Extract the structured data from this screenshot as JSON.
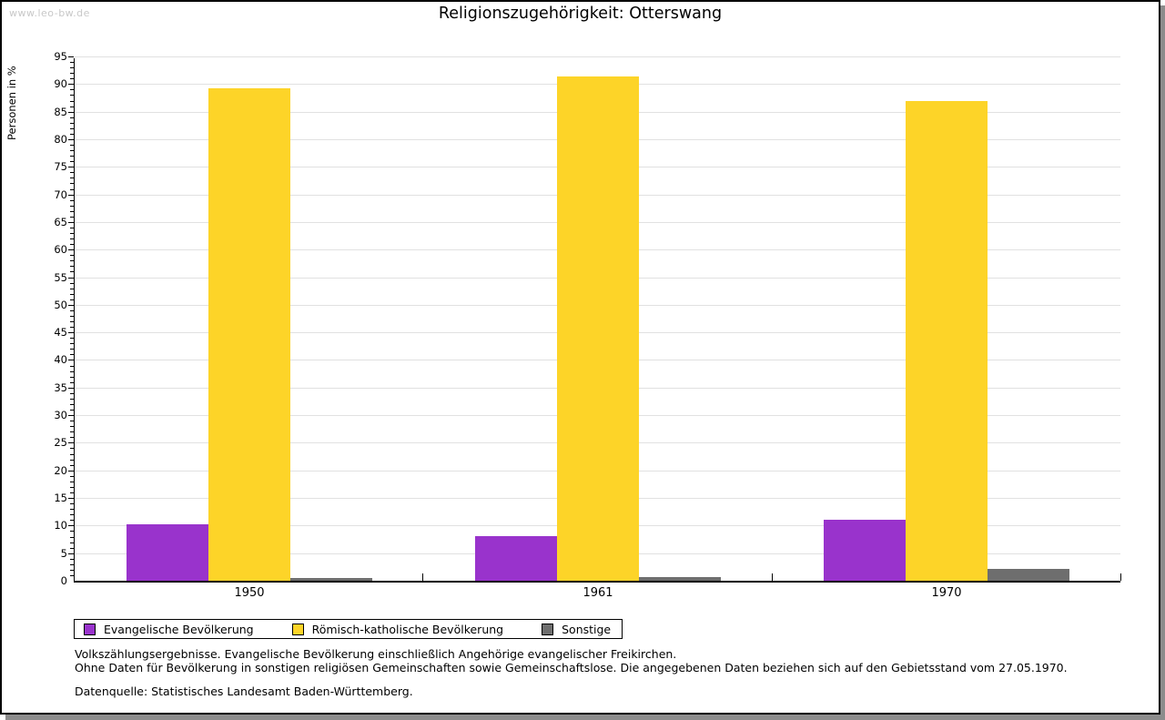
{
  "watermark": "www.leo-bw.de",
  "chart_data": {
    "type": "bar",
    "title": "Religionszugehörigkeit: Otterswang",
    "xlabel": "",
    "ylabel": "Personen in %",
    "categories": [
      "1950",
      "1961",
      "1970"
    ],
    "series": [
      {
        "name": "Evangelische Bevölkerung",
        "color": "#9933cc",
        "values": [
          10.2,
          8.0,
          11.0
        ]
      },
      {
        "name": "Römisch-katholische Bevölkerung",
        "color": "#fdd428",
        "values": [
          89.3,
          91.4,
          86.9
        ]
      },
      {
        "name": "Sonstige",
        "color": "#6e6e6e",
        "values": [
          0.5,
          0.6,
          2.1
        ]
      }
    ],
    "ylim": [
      0,
      95
    ],
    "ytick_step": 5,
    "yminor_step": 1,
    "grid": true,
    "legend_position": "bottom"
  },
  "footnotes": {
    "line1": "Volkszählungsergebnisse. Evangelische Bevölkerung einschließlich Angehörige evangelischer Freikirchen.",
    "line2": "Ohne Daten für Bevölkerung in sonstigen religiösen Gemeinschaften sowie Gemeinschaftslose. Die angegebenen Daten beziehen sich auf den Gebietsstand vom 27.05.1970.",
    "source": "Datenquelle: Statistisches Landesamt Baden-Württemberg."
  },
  "colors": {
    "axis": "#000000",
    "gridline": "#e1e1e1",
    "watermark": "#c8c8c8",
    "shadow": "#8c8c8c",
    "background": "#ffffff"
  }
}
